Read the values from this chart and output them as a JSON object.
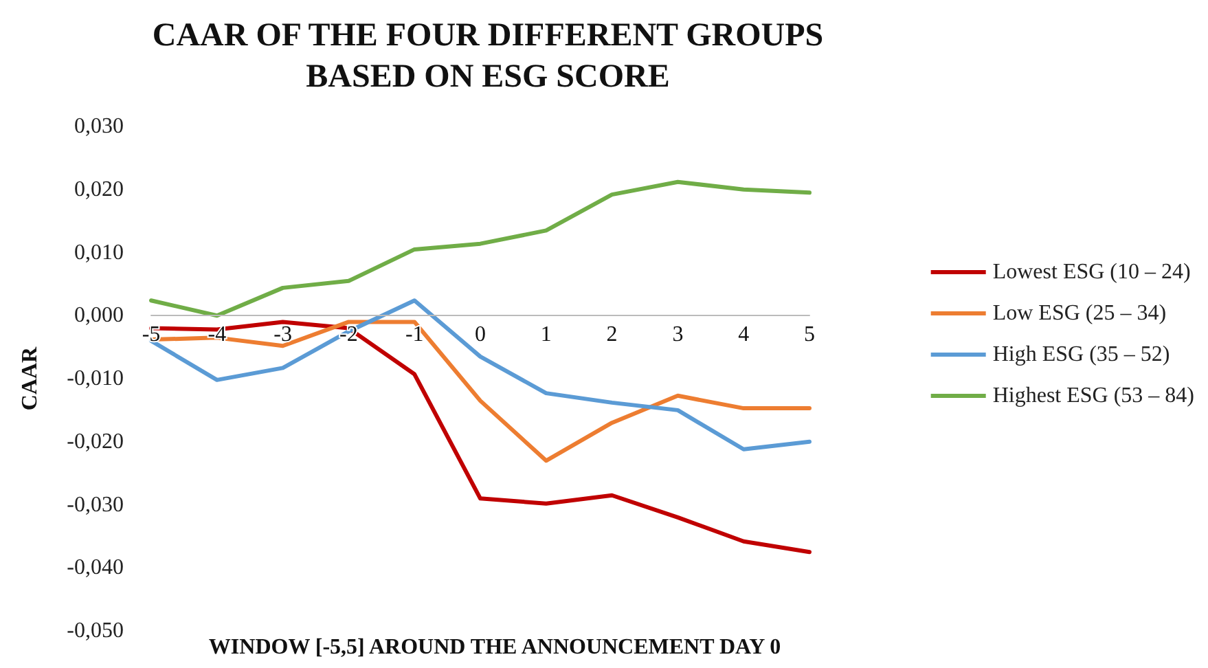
{
  "chart_data": {
    "type": "line",
    "title": "CAAR OF THE FOUR DIFFERENT GROUPS\nBASED ON ESG SCORE",
    "xlabel": "WINDOW [-5,5] AROUND THE ANNOUNCEMENT DAY 0",
    "ylabel": "CAAR",
    "categories": [
      "-5",
      "-4",
      "-3",
      "-2",
      "-1",
      "0",
      "1",
      "2",
      "3",
      "4",
      "5"
    ],
    "series": [
      {
        "name": "Lowest ESG (10 – 24)",
        "color": "#c00000",
        "values": [
          -0.002,
          -0.0022,
          -0.001,
          -0.002,
          -0.0093,
          -0.029,
          -0.0298,
          -0.0285,
          -0.032,
          -0.0358,
          -0.0375
        ]
      },
      {
        "name": "Low ESG (25 – 34)",
        "color": "#ed7d31",
        "values": [
          -0.0038,
          -0.0035,
          -0.0048,
          -0.001,
          -0.001,
          -0.0135,
          -0.023,
          -0.017,
          -0.0127,
          -0.0147,
          -0.0147
        ]
      },
      {
        "name": "High ESG (35 – 52)",
        "color": "#5b9bd5",
        "values": [
          -0.004,
          -0.0102,
          -0.0083,
          -0.0025,
          0.0024,
          -0.0065,
          -0.0123,
          -0.0138,
          -0.015,
          -0.0212,
          -0.02
        ]
      },
      {
        "name": "Highest ESG (53 – 84)",
        "color": "#70ad47",
        "values": [
          0.0024,
          0.0,
          0.0044,
          0.0055,
          0.0105,
          0.0114,
          0.0135,
          0.0192,
          0.0212,
          0.02,
          0.0195
        ]
      }
    ],
    "ylim": [
      -0.05,
      0.03
    ],
    "yticks": [
      {
        "value": -0.05,
        "label": "-0,050"
      },
      {
        "value": -0.04,
        "label": "-0,040"
      },
      {
        "value": -0.03,
        "label": "-0,030"
      },
      {
        "value": -0.02,
        "label": "-0,020"
      },
      {
        "value": -0.01,
        "label": "-0,010"
      },
      {
        "value": 0,
        "label": "0,000"
      },
      {
        "value": 0.01,
        "label": "0,010"
      },
      {
        "value": 0.02,
        "label": "0,020"
      },
      {
        "value": 0.03,
        "label": "0,030"
      }
    ],
    "grid": false,
    "legend": "right",
    "marker": "none",
    "line_style": "solid"
  }
}
